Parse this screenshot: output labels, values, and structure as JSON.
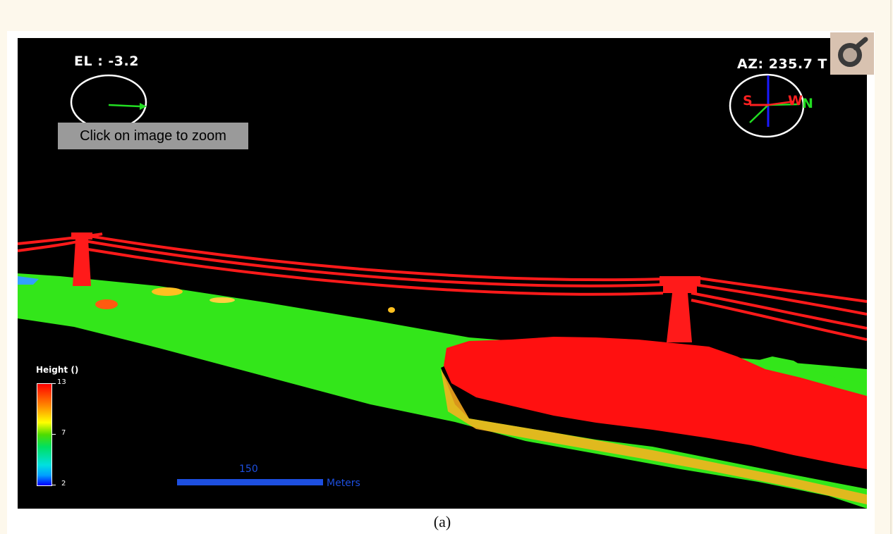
{
  "figure": {
    "elevation_label": "EL : -3.2",
    "azimuth_label": "AZ: 235.7 T",
    "compass_directions": {
      "south": "S",
      "west": "W",
      "north": "N"
    },
    "zoom_hint": "Click on image to zoom",
    "legend": {
      "title": "Height ()",
      "ticks": [
        "13",
        "7",
        "2"
      ],
      "colors": [
        "#ff0000",
        "#ffff00",
        "#4ddc00",
        "#00e0e0",
        "#0000ff"
      ]
    },
    "scale_bar": {
      "value": "150",
      "unit": "Meters"
    },
    "point_colors": {
      "ground": "#33e61a",
      "high": "#ff1010",
      "tower": "#ff1a1a",
      "water": "#33a0ff"
    }
  },
  "caption": "(a)",
  "zoom_button": {
    "icon": "magnifier-icon"
  }
}
